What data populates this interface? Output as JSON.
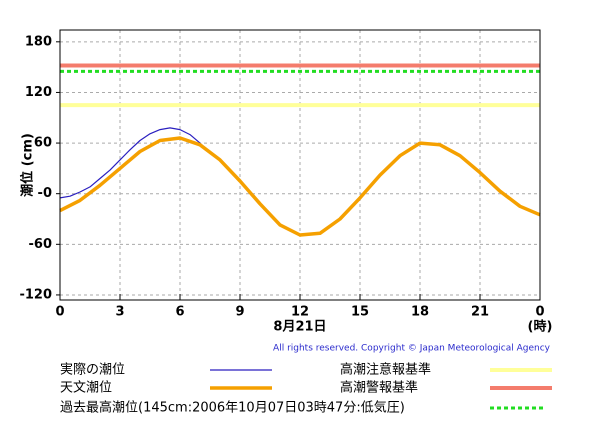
{
  "chart_data": {
    "type": "line",
    "y_label": "潮位 (cm)",
    "x_label": "8月21日",
    "x_unit": "(時)",
    "copyright": "All rights reserved. Copyright © Japan Meteorological Agency",
    "xlim": [
      0,
      24
    ],
    "xticks": [
      0,
      3,
      6,
      9,
      12,
      15,
      18,
      21,
      {
        "value": 24,
        "label": "0"
      }
    ],
    "ylim": [
      -126,
      194
    ],
    "yticks": [
      -120,
      -60,
      {
        "value": 0,
        "label": "-0"
      },
      60,
      120,
      180
    ],
    "grid": true,
    "series": [
      {
        "name": "実際の潮位",
        "color": "#2a1fbf",
        "width": 1.2,
        "x": [
          0,
          0.5,
          1,
          1.5,
          2,
          2.5,
          3,
          3.5,
          4,
          4.5,
          5,
          5.5,
          6,
          6.5,
          7,
          7.5
        ],
        "values": [
          -5,
          -3,
          2,
          8,
          18,
          28,
          40,
          52,
          63,
          71,
          76,
          78,
          76,
          70,
          60,
          48
        ]
      },
      {
        "name": "天文潮位",
        "color": "#f5a000",
        "width": 3.5,
        "x": [
          0,
          1,
          2,
          3,
          4,
          5,
          6,
          7,
          8,
          9,
          10,
          11,
          12,
          13,
          14,
          15,
          16,
          17,
          18,
          19,
          20,
          21,
          22,
          23,
          24
        ],
        "values": [
          -20,
          -8,
          10,
          30,
          50,
          63,
          66,
          58,
          40,
          15,
          -12,
          -37,
          -49,
          -47,
          -30,
          -5,
          22,
          45,
          60,
          58,
          45,
          25,
          3,
          -15,
          -25
        ]
      }
    ],
    "reference_lines": [
      {
        "name": "高潮注意報基準",
        "color": "#ffff99",
        "value": 105,
        "dash": false
      },
      {
        "name": "高潮警報基準",
        "color": "#f47c6c",
        "value": 152,
        "dash": false
      },
      {
        "name": "過去最高潮位(145cm:2006年10月07日03時47分:低気圧)",
        "color": "#22dd22",
        "value": 145,
        "dash": true
      }
    ]
  }
}
